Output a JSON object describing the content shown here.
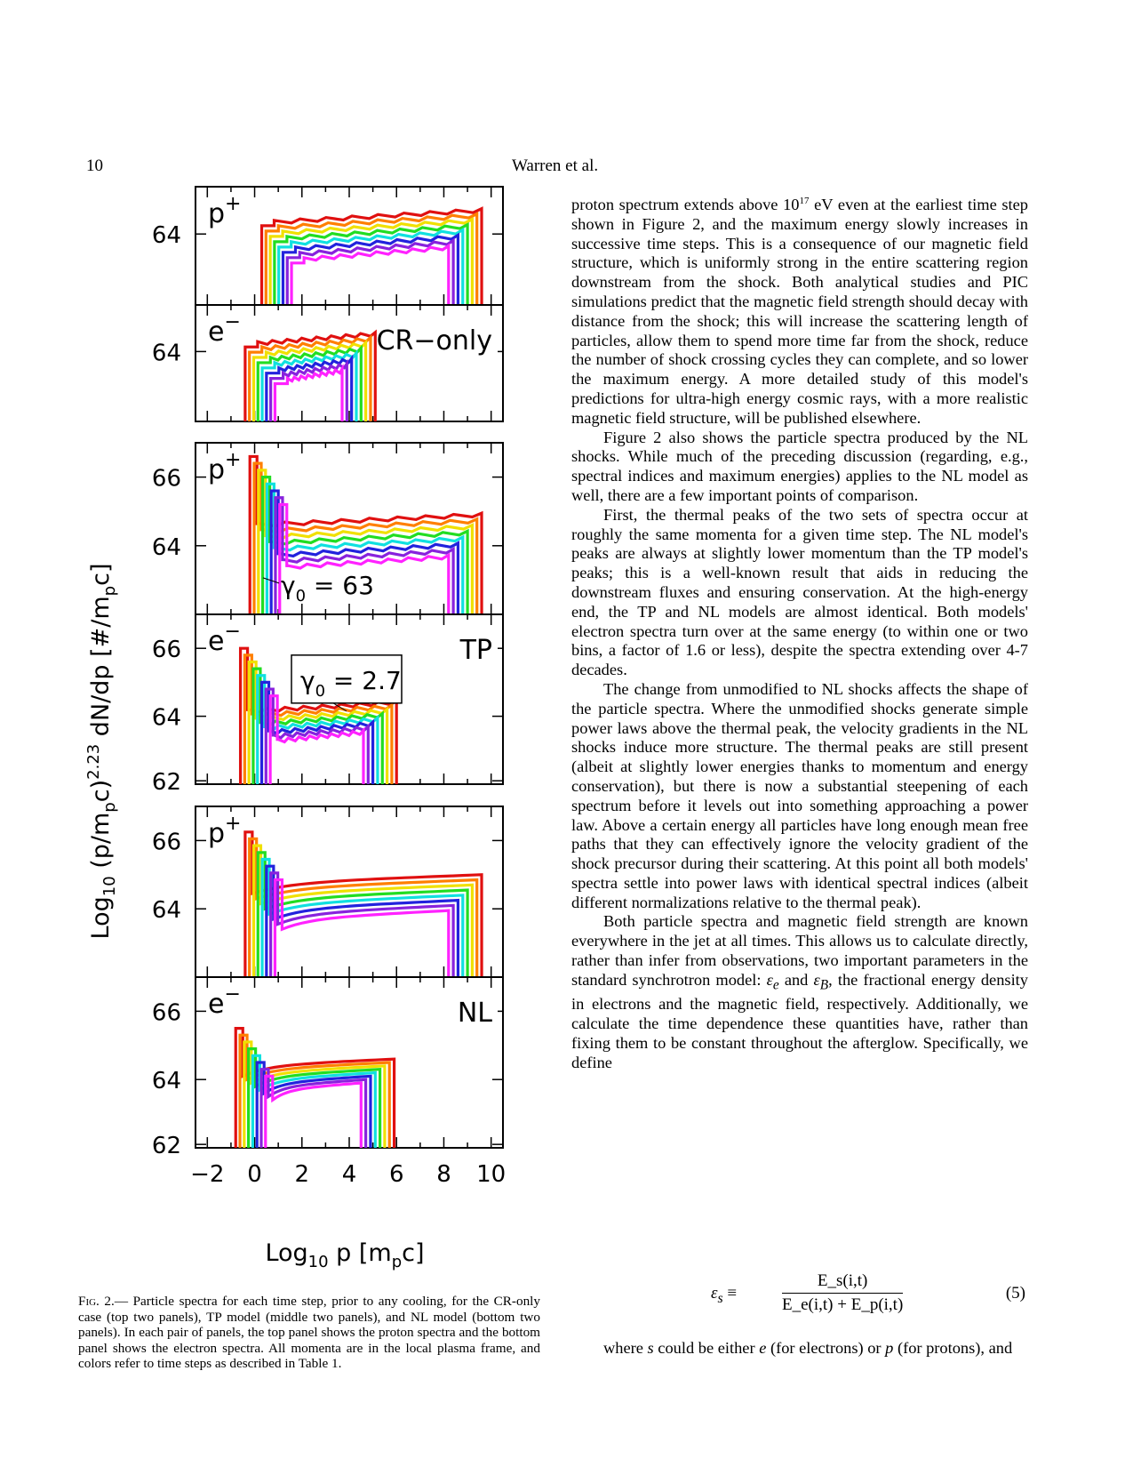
{
  "header": {
    "page_number": "10",
    "running_head": "Warren et al."
  },
  "figure": {
    "ylabel_parts": {
      "a": "Log",
      "b": "10",
      "c": " (p/m",
      "d": "p",
      "e": "c)",
      "f": "2.23",
      "g": " dN/dp  [#/m",
      "h": "p",
      "i": "c]"
    },
    "xlabel_parts": {
      "a": "Log",
      "b": "10",
      "c": " p  [m",
      "d": "p",
      "e": "c]"
    },
    "x_ticks": [
      "−2",
      "0",
      "2",
      "4",
      "6",
      "8",
      "10"
    ],
    "colors": [
      "#e01010",
      "#ff7f00",
      "#f0e000",
      "#22dd22",
      "#10e0e0",
      "#2222dd",
      "#8822dd",
      "#ff22ff"
    ],
    "panels": [
      {
        "species": "p",
        "charge": "+",
        "case": "",
        "y_ticks": [
          "64"
        ],
        "annotation": ""
      },
      {
        "species": "e",
        "charge": "−",
        "case": "CR−only",
        "y_ticks": [
          "64"
        ],
        "annotation": ""
      },
      {
        "species": "p",
        "charge": "+",
        "case": "",
        "y_ticks": [
          "66",
          "64"
        ],
        "annotation": "γ₀ = 63",
        "ann_gamma": "γ",
        "ann_sub": "0",
        "ann_val": " = 63"
      },
      {
        "species": "e",
        "charge": "−",
        "case": "TP",
        "y_ticks": [
          "66",
          "64",
          "62"
        ],
        "annotation": "γ₀ = 2.7",
        "ann_gamma": "γ",
        "ann_sub": "0",
        "ann_val": " = 2.7"
      },
      {
        "species": "p",
        "charge": "+",
        "case": "",
        "y_ticks": [
          "66",
          "64"
        ],
        "annotation": ""
      },
      {
        "species": "e",
        "charge": "−",
        "case": "NL",
        "y_ticks": [
          "66",
          "64",
          "62"
        ],
        "annotation": ""
      }
    ]
  },
  "caption": {
    "label": "Fig. 2.",
    "text": "— Particle spectra for each time step, prior to any cooling, for the CR-only case (top two panels), TP model (middle two panels), and NL model (bottom two panels). In each pair of panels, the top panel shows the proton spectra and the bottom panel shows the electron spectra. All momenta are in the local plasma frame, and colors refer to time steps as described in Table 1."
  },
  "body": {
    "p1_a": "proton spectrum extends above 10",
    "p1_sup": "17",
    "p1_b": " eV even at the earliest time step shown in Figure 2, and the maximum energy slowly increases in successive time steps. This is a consequence of our magnetic field structure, which is uniformly strong in the entire scattering region downstream from the shock. Both analytical studies and PIC simulations predict that the magnetic field strength should decay with distance from the shock; this will increase the scattering length of particles, allow them to spend more time far from the shock, reduce the number of shock crossing cycles they can complete, and so lower the maximum energy. A more detailed study of this model's predictions for ultra-high energy cosmic rays, with a more realistic magnetic field structure, will be published elsewhere.",
    "p2": "Figure 2 also shows the particle spectra produced by the NL shocks. While much of the preceding discussion (regarding, e.g., spectral indices and maximum energies) applies to the NL model as well, there are a few important points of comparison.",
    "p3": "First, the thermal peaks of the two sets of spectra occur at roughly the same momenta for a given time step. The NL model's peaks are always at slightly lower momentum than the TP model's peaks; this is a well-known result that aids in reducing the downstream fluxes and ensuring conservation. At the high-energy end, the TP and NL models are almost identical. Both models' electron spectra turn over at the same energy (to within one or two bins, a factor of 1.6 or less), despite the spectra extending over 4-7 decades.",
    "p4": "The change from unmodified to NL shocks affects the shape of the particle spectra. Where the unmodified shocks generate simple power laws above the thermal peak, the velocity gradients in the NL shocks induce more structure. The thermal peaks are still present (albeit at slightly lower energies thanks to momentum and energy conservation), but there is now a substantial steepening of each spectrum before it levels out into something approaching a power law. Above a certain energy all particles have long enough mean free paths that they can effectively ignore the velocity gradient of the shock precursor during their scattering. At this point all both models' spectra settle into power laws with identical spectral indices (albeit different normalizations relative to the thermal peak).",
    "p5_a": "Both particle spectra and magnetic field strength are known everywhere in the jet at all times. This allows us to calculate directly, rather than infer from observations, two important parameters in the standard synchrotron model: ",
    "p5_eps_e": "ε",
    "p5_e_sub": "e",
    "p5_and": " and ",
    "p5_eps_b": "ε",
    "p5_b_sub": "B",
    "p5_b": ", the fractional energy density in electrons and the magnetic field, respectively. Additionally, we calculate the time dependence these quantities have, rather than fixing them to be constant throughout the afterglow. Specifically, we define",
    "after_a": "where ",
    "after_s": "s",
    "after_b": " could be either ",
    "after_e": "e",
    "after_c": " (for electrons) or ",
    "after_p": "p",
    "after_d": " (for protons), and"
  },
  "equation": {
    "lhs_eps": "ε",
    "lhs_sub": "s",
    "equiv": " ≡",
    "num": "E_s(i,t)",
    "den": "E_e(i,t) + E_p(i,t)",
    "number": "(5)"
  }
}
